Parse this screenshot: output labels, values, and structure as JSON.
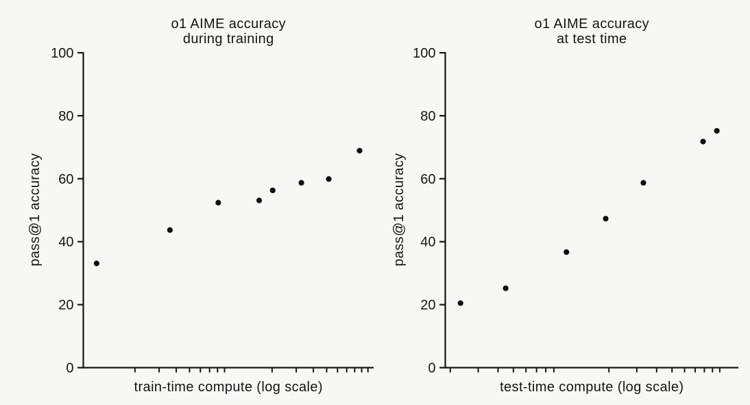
{
  "figure": {
    "background_color": "#f7f7f5",
    "axis_color": "#141414",
    "text_color": "#141414",
    "point_color": "#0d0d0d"
  },
  "chart_data": [
    {
      "type": "scatter",
      "title": "o1 AIME accuracy\nduring training",
      "xlabel": "train-time compute (log scale)",
      "ylabel": "pass@1 accuracy",
      "xscale": "log",
      "x_range": [
        0.84,
        110
      ],
      "ylim": [
        0,
        100
      ],
      "yticks": [
        0,
        20,
        40,
        60,
        80,
        100
      ],
      "x_minor_ticks": [
        2,
        3,
        4,
        5,
        6,
        7,
        8,
        9,
        20,
        30,
        40,
        50,
        60,
        70,
        80,
        90,
        100
      ],
      "grid": false,
      "legend": null,
      "points": [
        {
          "x": 1.05,
          "y": 33.1
        },
        {
          "x": 3.6,
          "y": 43.7
        },
        {
          "x": 8.1,
          "y": 52.4
        },
        {
          "x": 16.1,
          "y": 53.1
        },
        {
          "x": 20.2,
          "y": 56.3
        },
        {
          "x": 32.7,
          "y": 58.7
        },
        {
          "x": 51.8,
          "y": 59.9
        },
        {
          "x": 86.9,
          "y": 68.9
        }
      ]
    },
    {
      "type": "scatter",
      "title": "o1 AIME accuracy\nat test time",
      "xlabel": "test-time compute (log scale)",
      "ylabel": "pass@1 accuracy",
      "xscale": "log",
      "x_range": [
        1.86,
        131
      ],
      "ylim": [
        0,
        100
      ],
      "yticks": [
        0,
        20,
        40,
        60,
        80,
        100
      ],
      "x_minor_ticks": [
        2,
        3,
        4,
        5,
        6,
        7,
        8,
        9,
        20,
        30,
        40,
        50,
        60,
        70,
        80,
        90,
        100
      ],
      "grid": false,
      "legend": null,
      "points": [
        {
          "x": 2.32,
          "y": 20.5
        },
        {
          "x": 4.47,
          "y": 25.2
        },
        {
          "x": 10.8,
          "y": 36.7
        },
        {
          "x": 19.1,
          "y": 47.3
        },
        {
          "x": 33.0,
          "y": 58.7
        },
        {
          "x": 78.5,
          "y": 71.8
        },
        {
          "x": 95.9,
          "y": 75.2
        }
      ]
    }
  ]
}
